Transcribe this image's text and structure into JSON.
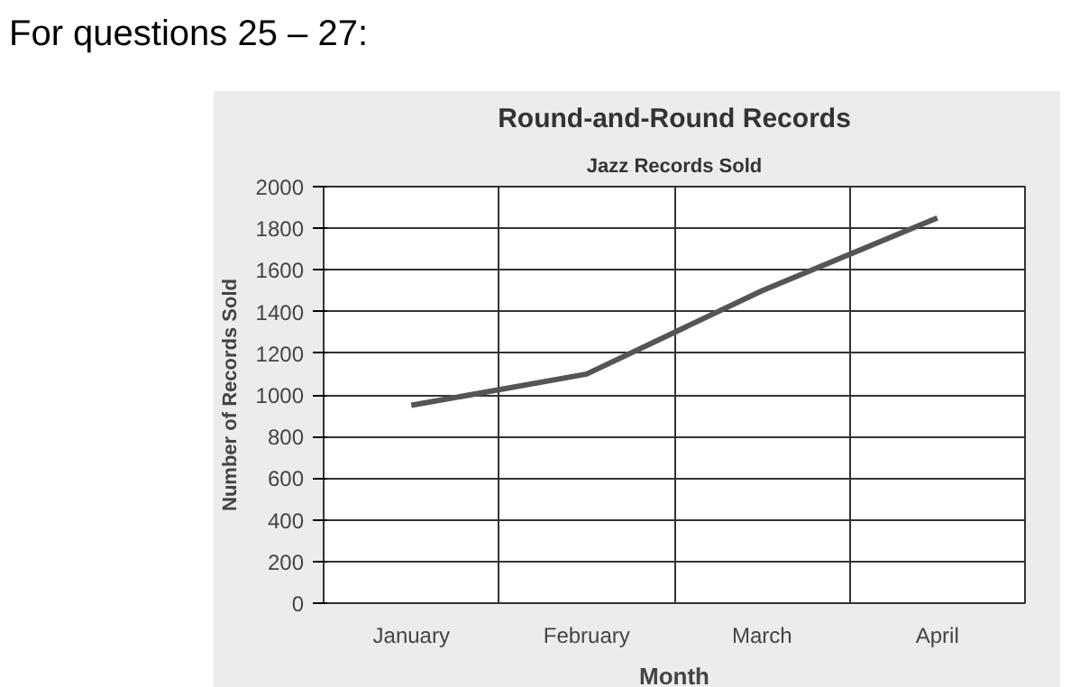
{
  "chart_data": {
    "type": "line",
    "title": "Round-and-Round Records",
    "subtitle": "Jazz Records Sold",
    "xlabel": "Month",
    "ylabel": "Number of Records Sold",
    "annotations": [
      "For questions 25 – 27:"
    ],
    "categories": [
      "January",
      "February",
      "March",
      "April"
    ],
    "series": [
      {
        "color": "#555555",
        "values": [
          950,
          1100,
          1500,
          1850
        ]
      }
    ],
    "ylim": [
      0,
      2000
    ],
    "yticks": [
      0,
      200,
      400,
      600,
      800,
      1000,
      1200,
      1400,
      1600,
      1800,
      2000
    ],
    "grid": true,
    "marker": "none",
    "line_style": "solid"
  }
}
